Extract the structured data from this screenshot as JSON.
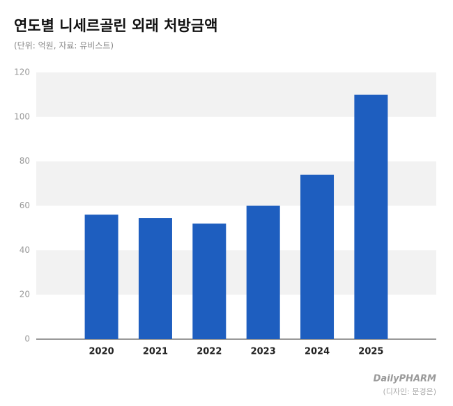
{
  "chart_data": {
    "type": "bar",
    "title": "연도별 니세르골린 외래 처방금액",
    "subtitle": "(단위: 억원, 자료: 유비스트)",
    "categories": [
      "2020",
      "2021",
      "2022",
      "2023",
      "2024",
      "2025"
    ],
    "values": [
      56,
      54.5,
      52,
      60,
      74,
      110
    ],
    "color": "#1e5ebf",
    "ylim": [
      0,
      120
    ],
    "yticks": [
      0,
      20,
      40,
      60,
      80,
      100,
      120
    ],
    "grid": true,
    "logo": "DailyPHARM",
    "credit": "(디자인: 문경은)"
  }
}
